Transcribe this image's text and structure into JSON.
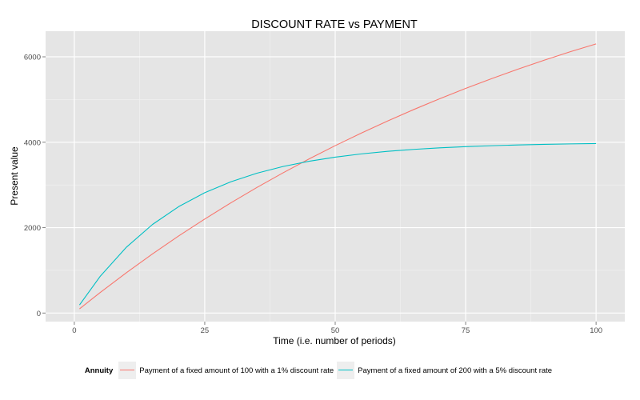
{
  "chart_data": {
    "type": "line",
    "title": "DISCOUNT RATE vs PAYMENT",
    "xlabel": "Time (i.e. number of periods)",
    "ylabel": "Present value",
    "xlim": [
      -5.5,
      105.5
    ],
    "ylim": [
      -200,
      6600
    ],
    "xticks": [
      0,
      25,
      50,
      75,
      100
    ],
    "yticks": [
      0,
      2000,
      4000,
      6000
    ],
    "grid": true,
    "legend_position": "bottom",
    "legend_title": "Annuity",
    "series": [
      {
        "name": "Payment of a fixed amount of 100 with a 1% discount rate",
        "color": "#F8766D",
        "payment": 100,
        "rate": 0.01,
        "x": [
          1,
          5,
          10,
          15,
          20,
          25,
          30,
          35,
          40,
          45,
          50,
          55,
          60,
          65,
          70,
          75,
          80,
          85,
          90,
          95,
          100
        ],
        "values": [
          99,
          485,
          947,
          1387,
          1805,
          2202,
          2581,
          2941,
          3283,
          3609,
          3920,
          4214,
          4496,
          4763,
          5018,
          5260,
          5490,
          5710,
          5918,
          6117,
          6303
        ]
      },
      {
        "name": "Payment of a fixed amount of 200 with a 5% discount rate",
        "color": "#00BFC4",
        "payment": 200,
        "rate": 0.05,
        "x": [
          1,
          5,
          10,
          15,
          20,
          25,
          30,
          35,
          40,
          45,
          50,
          55,
          60,
          65,
          70,
          75,
          80,
          85,
          90,
          95,
          100
        ],
        "values": [
          190,
          866,
          1544,
          2076,
          2492,
          2819,
          3074,
          3275,
          3432,
          3555,
          3651,
          3727,
          3786,
          3832,
          3869,
          3897,
          3919,
          3937,
          3950,
          3961,
          3970
        ]
      }
    ]
  }
}
